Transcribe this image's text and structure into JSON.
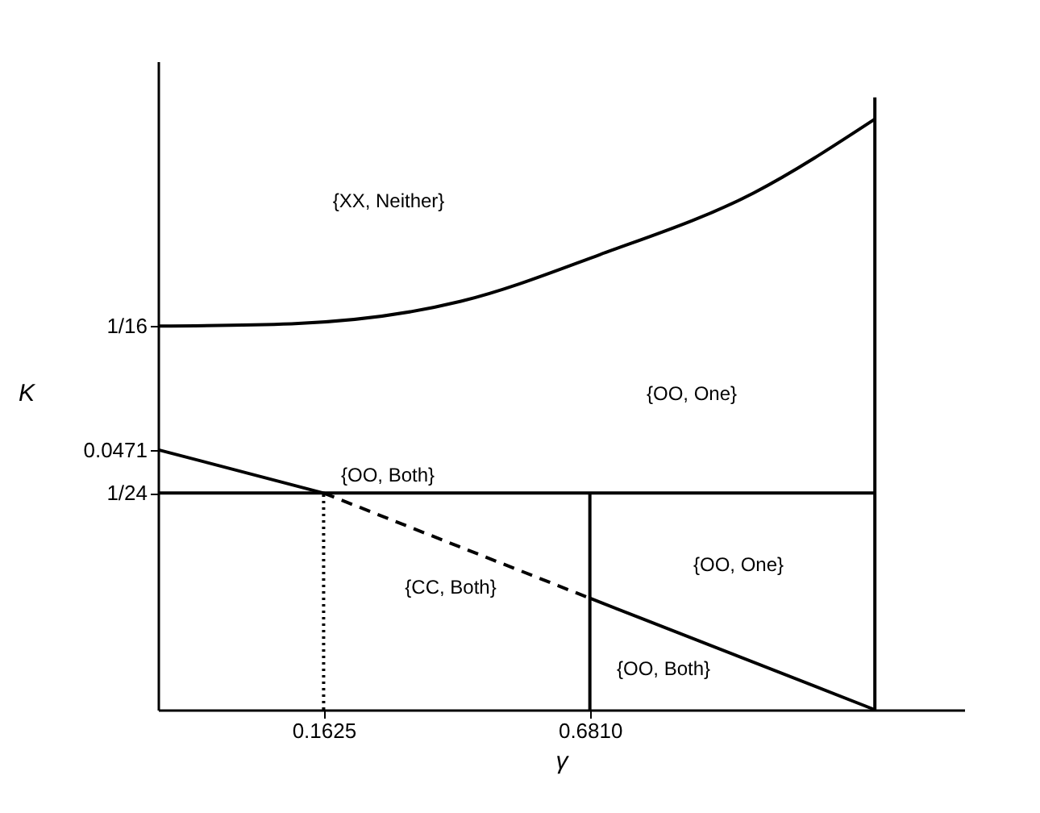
{
  "chart_data": {
    "type": "line",
    "xlabel": "γ",
    "ylabel": "K",
    "xlim": [
      -0.16,
      1.41
    ],
    "ylim": [
      0.0147,
      0.0955
    ],
    "xticks": [
      {
        "value": 0.1625,
        "label": "0.1625"
      },
      {
        "value": 0.681,
        "label": "0.6810"
      }
    ],
    "yticks": [
      {
        "value": 0.0417,
        "label": "1/24"
      },
      0.0471,
      {
        "value": 0.0625,
        "label": "1/16"
      }
    ],
    "grid": false,
    "marker": "none",
    "series": [
      {
        "color": "#000000",
        "line_style": "solid",
        "x": [
          -0.16,
          0.1,
          0.43,
          0.7,
          1.0,
          1.236
        ],
        "values": [
          0.0625,
          0.0628,
          0.0656,
          0.0714,
          0.0791,
          0.0883
        ]
      },
      {
        "color": "#000000",
        "line_style": "solid",
        "x": [
          -0.16,
          0.1625
        ],
        "values": [
          0.0471,
          0.0417
        ]
      },
      {
        "color": "#000000",
        "line_style": "dashed",
        "x": [
          0.1625,
          0.681
        ],
        "values": [
          0.0417,
          0.0286
        ]
      },
      {
        "color": "#000000",
        "line_style": "solid",
        "x": [
          0.681,
          1.236
        ],
        "values": [
          0.0286,
          0.0147
        ]
      },
      {
        "color": "#000000",
        "line_style": "solid",
        "x": [
          -0.16,
          1.236
        ],
        "values": [
          0.0417,
          0.0417
        ]
      },
      {
        "color": "#000000",
        "line_style": "solid",
        "x": [
          0.681,
          0.681
        ],
        "values": [
          0.0147,
          0.0417
        ]
      },
      {
        "color": "#000000",
        "line_style": "solid",
        "x": [
          1.236,
          1.236
        ],
        "values": [
          0.0147,
          0.091
        ]
      },
      {
        "color": "#000000",
        "line_style": "dotted",
        "x": [
          0.1625,
          0.1625
        ],
        "values": [
          0.0147,
          0.0417
        ]
      }
    ],
    "annotations": [
      "{XX, Neither}",
      "{OO, One}",
      "{OO, Both}",
      "{CC, Both}",
      "{OO, One}",
      "{OO, Both}"
    ]
  }
}
